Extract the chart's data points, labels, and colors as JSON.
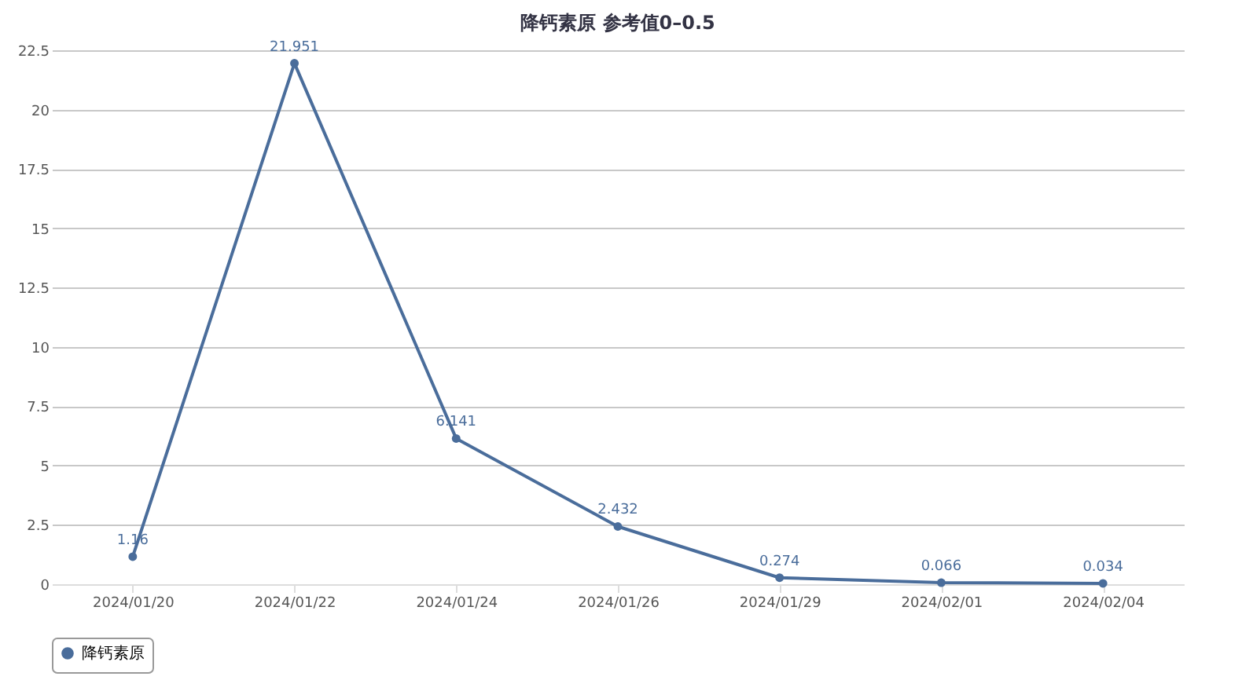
{
  "chart_data": {
    "type": "line",
    "title": "降钙素原 参考值0–0.5",
    "categories": [
      "2024/01/20",
      "2024/01/22",
      "2024/01/24",
      "2024/01/26",
      "2024/01/29",
      "2024/02/01",
      "2024/02/04"
    ],
    "series": [
      {
        "name": "降钙素原",
        "color": "#4a6d9b",
        "values": [
          1.16,
          21.951,
          6.141,
          2.432,
          0.274,
          0.066,
          0.034
        ]
      }
    ],
    "ylim": [
      0,
      22.5
    ],
    "yticks": [
      0,
      2.5,
      5,
      7.5,
      10,
      12.5,
      15,
      17.5,
      20,
      22.5
    ],
    "grid": "y",
    "legend": "bottom",
    "marker": "circle",
    "line_style": "solid",
    "data_labels": true
  }
}
